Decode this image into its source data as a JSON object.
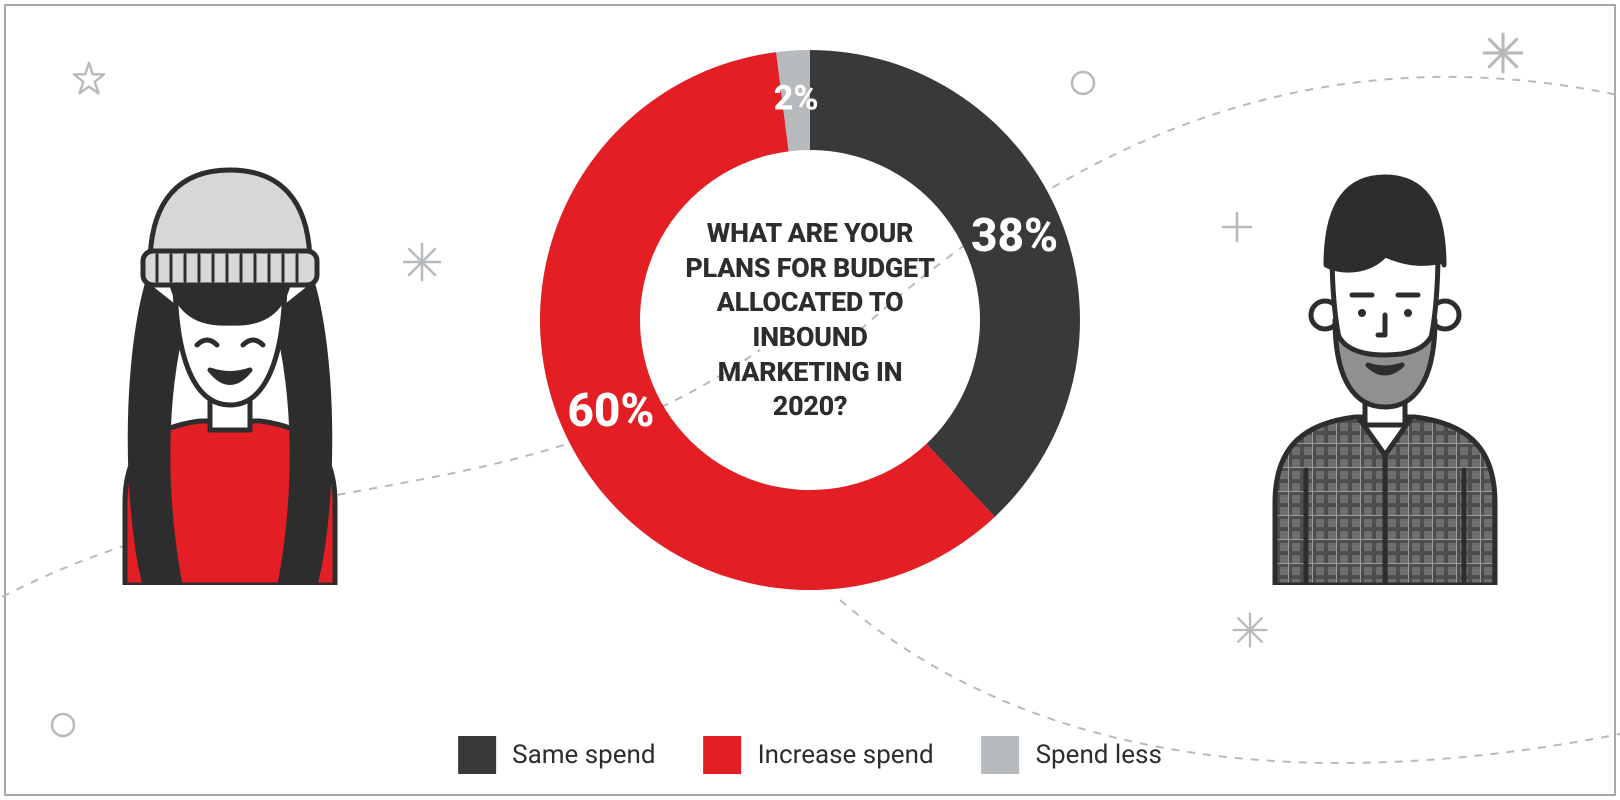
{
  "chart": {
    "type": "donut",
    "center_title": "WHAT ARE YOUR PLANS FOR BUDGET ALLOCATED TO INBOUND MARKETING IN 2020?",
    "background_color": "#ffffff",
    "stroke_color": "#a5a8ab",
    "inner_radius": 170,
    "outer_radius": 270,
    "slices": [
      {
        "label": "Same spend",
        "value": 38,
        "percent_label": "38%",
        "color": "#393939"
      },
      {
        "label": "Increase spend",
        "value": 60,
        "percent_label": "60%",
        "color": "#e31e24"
      },
      {
        "label": "Spend less",
        "value": 2,
        "percent_label": "2%",
        "color": "#b7babd"
      }
    ]
  },
  "legend": {
    "items": [
      {
        "label": "Same spend",
        "color": "#393939"
      },
      {
        "label": "Increase spend",
        "color": "#e31e24"
      },
      {
        "label": "Spend less",
        "color": "#b7babd"
      }
    ],
    "label_fontsize": 26,
    "swatch_size": 38
  },
  "figures": {
    "left_person": {
      "hat_color": "#d5d7d9",
      "hair_color": "#2d2d2d",
      "shirt_color": "#e31e24",
      "skin_color": "#ffffff",
      "outline": "#2d2d2d"
    },
    "right_person": {
      "hair_color": "#2d2d2d",
      "beard_color": "#6d6e70",
      "shirt_color": "#6d6e70",
      "skin_color": "#ffffff",
      "outline": "#2d2d2d"
    }
  },
  "decor": {
    "stroke": "#b7babd",
    "dashed_curves": true
  }
}
